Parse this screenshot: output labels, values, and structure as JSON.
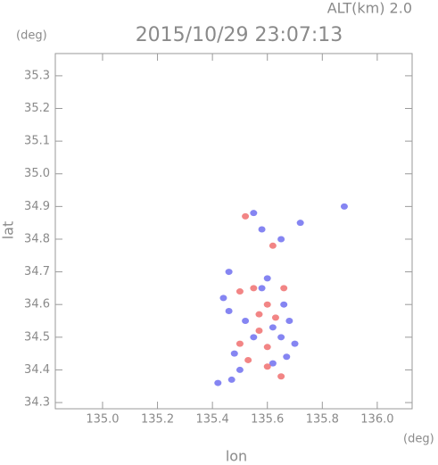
{
  "chart_data": {
    "type": "scatter",
    "title": "2015/10/29 23:07:13",
    "annotations": [
      "ALT(km) 2.0",
      "(deg)",
      "(deg)"
    ],
    "x_label": "lon",
    "y_label": "lat",
    "xlim": [
      134.828,
      136.127
    ],
    "ylim": [
      34.281,
      35.368
    ],
    "xticks": [
      {
        "value": 135.0,
        "label": "135.0"
      },
      {
        "value": 135.2,
        "label": "135.2"
      },
      {
        "value": 135.4,
        "label": "135.4"
      },
      {
        "value": 135.6,
        "label": "135.6"
      },
      {
        "value": 135.8,
        "label": "135.8"
      },
      {
        "value": 136.0,
        "label": "136.0"
      }
    ],
    "yticks": [
      34.3,
      34.4,
      34.5,
      34.6,
      34.7,
      34.8,
      34.9,
      {
        "value": 35.0,
        "label": "35.0"
      },
      35.1,
      35.2,
      35.3
    ],
    "series": [
      {
        "color": "#7070f0",
        "x": [
          135.55,
          135.58,
          135.65,
          135.72,
          135.88,
          135.46,
          135.44,
          135.46,
          135.6,
          135.66,
          135.68,
          135.55,
          135.65,
          135.7,
          135.48,
          135.5,
          135.62,
          135.67,
          135.42,
          135.47,
          135.58,
          135.52,
          135.62
        ],
        "values": [
          34.88,
          34.83,
          34.8,
          34.85,
          34.9,
          34.7,
          34.62,
          34.58,
          34.68,
          34.6,
          34.55,
          34.5,
          34.5,
          34.48,
          34.45,
          34.4,
          34.42,
          34.44,
          34.36,
          34.37,
          34.65,
          34.55,
          34.53
        ]
      },
      {
        "color": "#f07070",
        "x": [
          135.52,
          135.62,
          135.55,
          135.6,
          135.57,
          135.63,
          135.5,
          135.6,
          135.57,
          135.53,
          135.6,
          135.65,
          135.5,
          135.66
        ],
        "values": [
          34.87,
          34.78,
          34.65,
          34.6,
          34.57,
          34.56,
          34.48,
          34.47,
          34.52,
          34.43,
          34.41,
          34.38,
          34.64,
          34.65
        ]
      }
    ]
  }
}
